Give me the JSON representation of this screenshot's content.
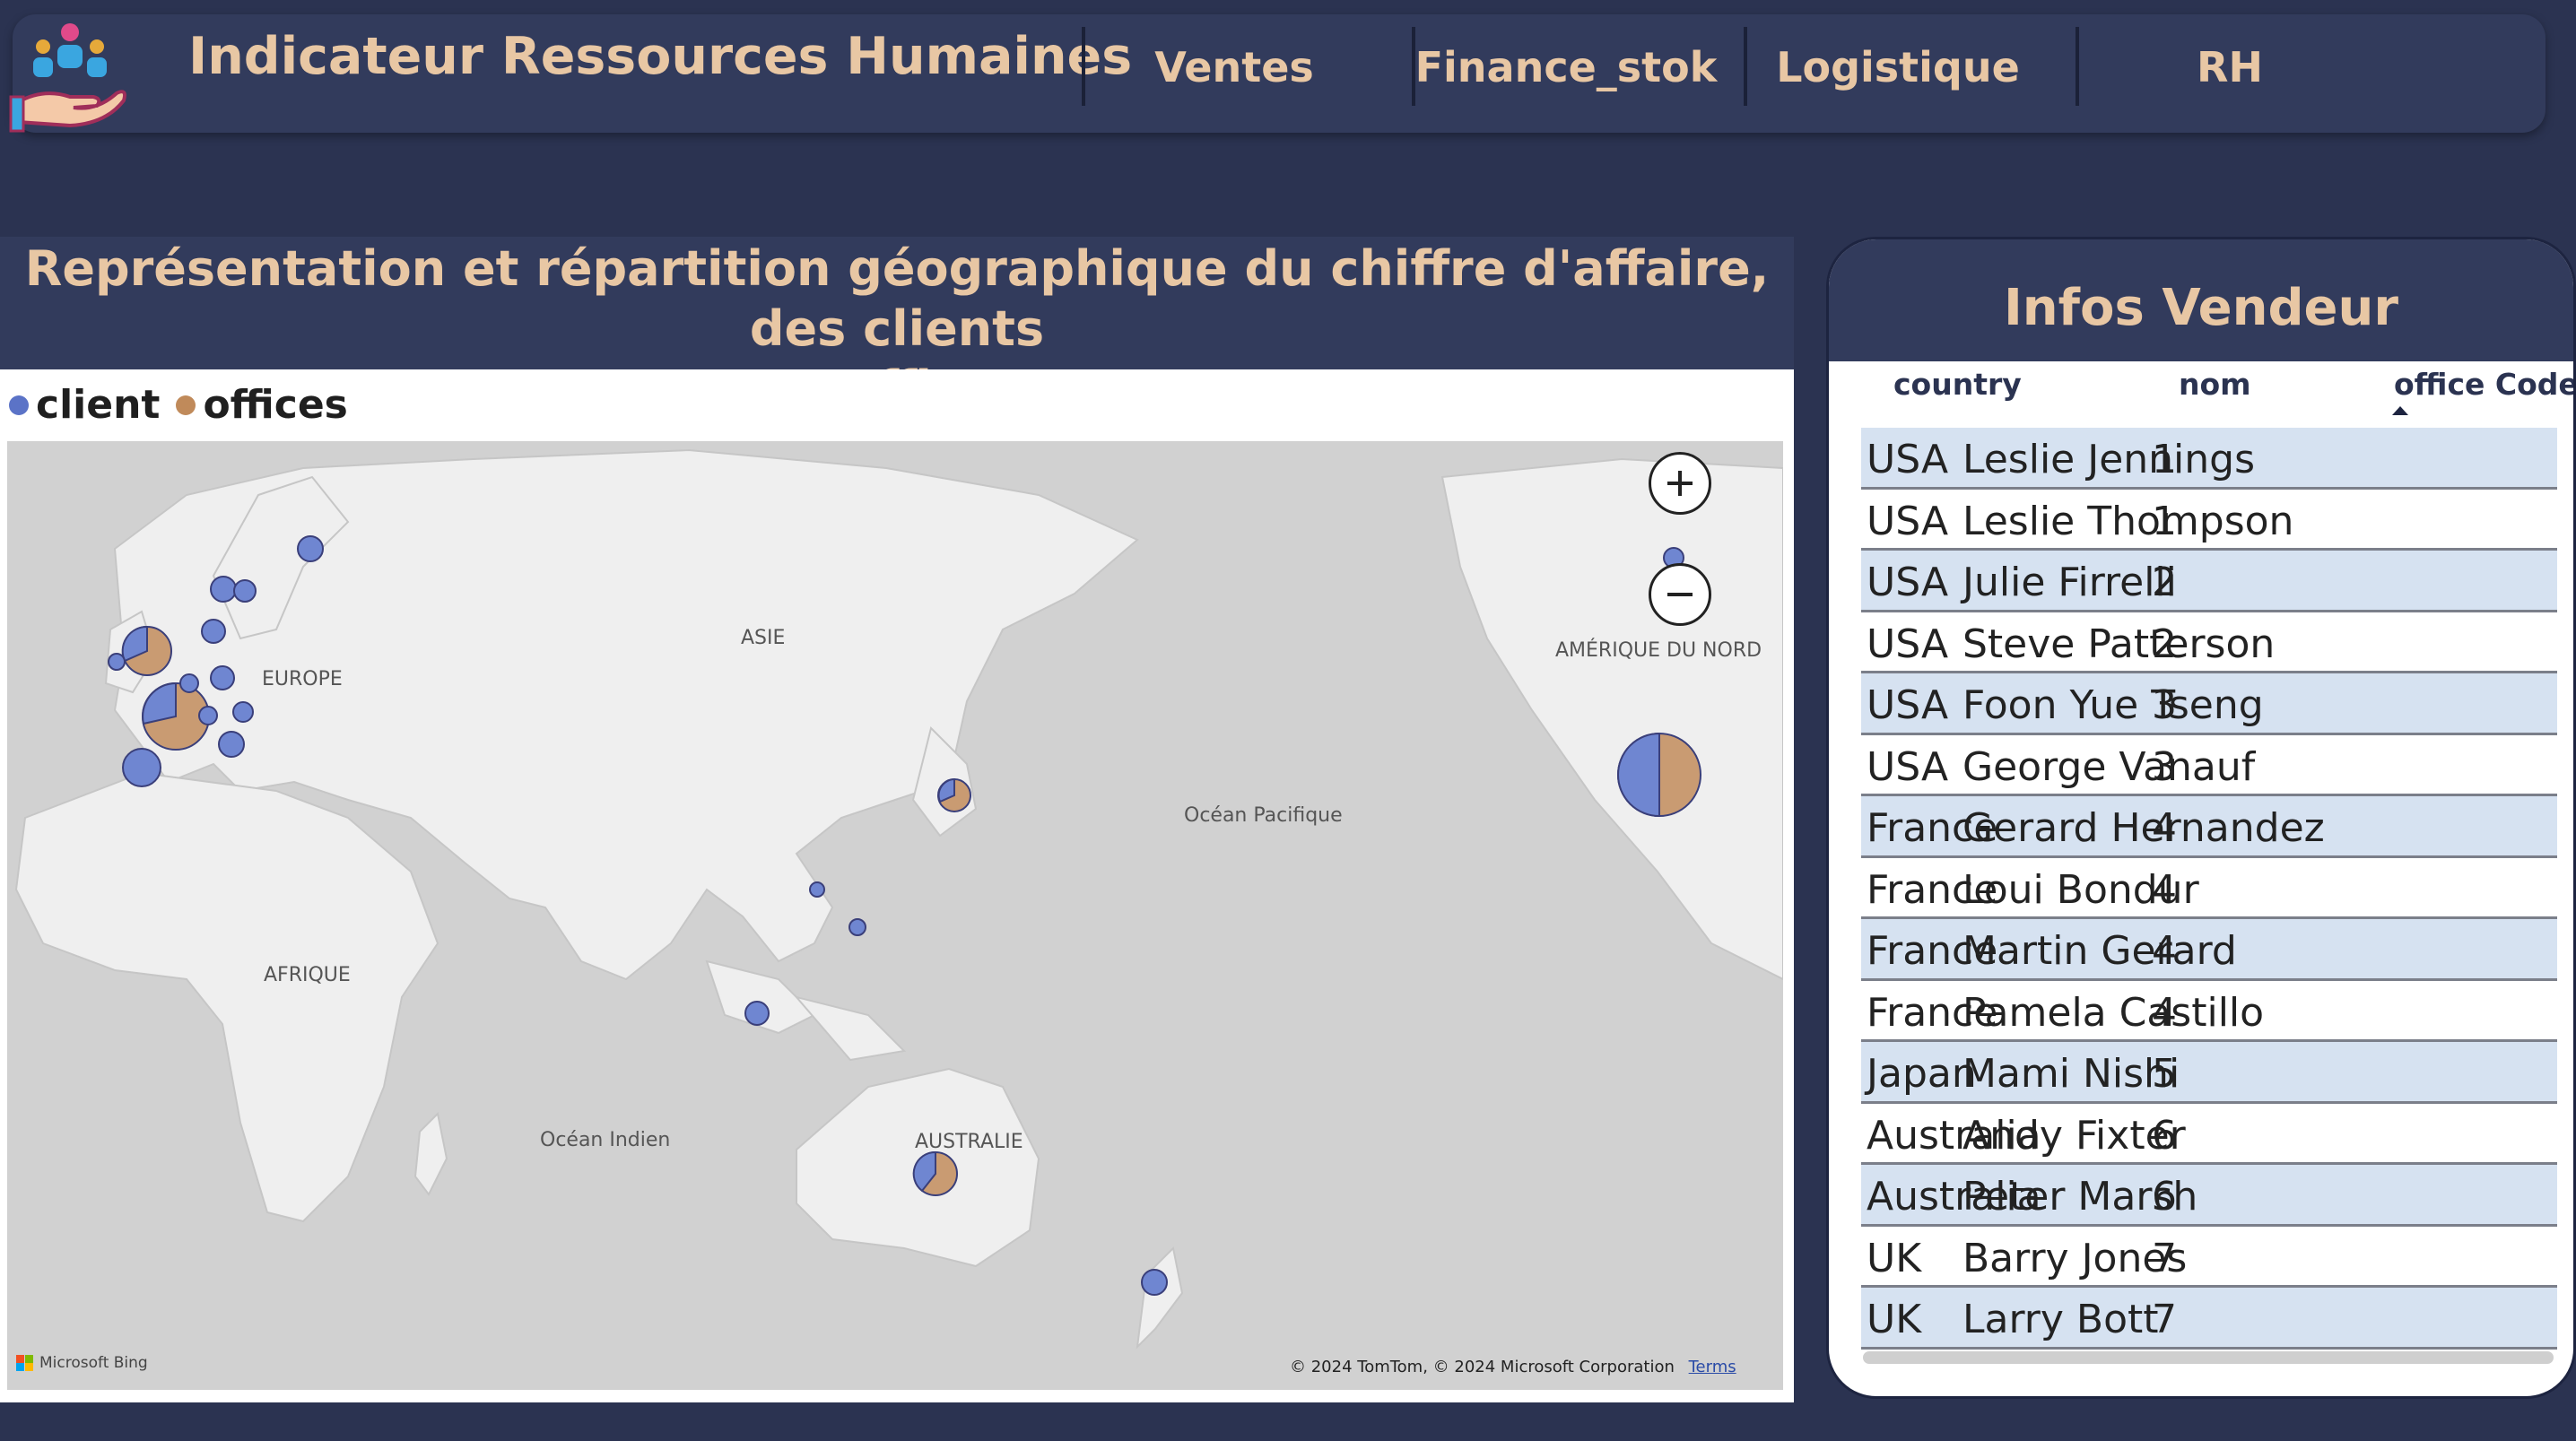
{
  "header": {
    "title": "Indicateur Ressources Humaines",
    "nav": [
      {
        "label": "Ventes"
      },
      {
        "label": "Finance_stok"
      },
      {
        "label": "Logistique"
      },
      {
        "label": "RH"
      }
    ]
  },
  "map_section": {
    "title_line1": "Représentation et répartition géographique du chiffre d'affaire, des clients",
    "title_line2": "et offices",
    "legend": [
      {
        "label": "client",
        "color": "#5b73c7"
      },
      {
        "label": "offices",
        "color": "#c08a5a"
      }
    ],
    "region_labels": {
      "europe": "EUROPE",
      "asie": "ASIE",
      "amerique": "AMÉRIQUE DU NORD",
      "pacifique": "Océan Pacifique",
      "afrique": "AFRIQUE",
      "indien": "Océan Indien",
      "australie": "AUSTRALIE"
    },
    "attribution": "Microsoft Bing",
    "copyright": "© 2024 TomTom, © 2024 Microsoft Corporation",
    "terms": "Terms",
    "colors": {
      "client": "#6f86d1",
      "offices": "#c99b72",
      "land": "#efefef",
      "water": "#d1d1d1"
    }
  },
  "vendor": {
    "title": "Infos Vendeur",
    "columns": [
      "country",
      "nom",
      "office Code"
    ],
    "rows": [
      {
        "country": "USA",
        "nom": "Leslie Jennings",
        "office_code": "1"
      },
      {
        "country": "USA",
        "nom": "Leslie Thompson",
        "office_code": "1"
      },
      {
        "country": "USA",
        "nom": "Julie Firrelli",
        "office_code": "2"
      },
      {
        "country": "USA",
        "nom": "Steve Patterson",
        "office_code": "2"
      },
      {
        "country": "USA",
        "nom": "Foon Yue Tseng",
        "office_code": "3"
      },
      {
        "country": "USA",
        "nom": "George Vanauf",
        "office_code": "3"
      },
      {
        "country": "France",
        "nom": "Gerard Hernandez",
        "office_code": "4"
      },
      {
        "country": "France",
        "nom": "Loui Bondur",
        "office_code": "4"
      },
      {
        "country": "France",
        "nom": "Martin Gerard",
        "office_code": "4"
      },
      {
        "country": "France",
        "nom": "Pamela Castillo",
        "office_code": "4"
      },
      {
        "country": "Japan",
        "nom": "Mami Nishi",
        "office_code": "5"
      },
      {
        "country": "Australia",
        "nom": "Andy Fixter",
        "office_code": "6"
      },
      {
        "country": "Australia",
        "nom": "Peter Marsh",
        "office_code": "6"
      },
      {
        "country": "UK",
        "nom": "Barry Jones",
        "office_code": "7"
      },
      {
        "country": "UK",
        "nom": "Larry Bott",
        "office_code": "7"
      }
    ]
  },
  "icons": {
    "logo": "hr-hand-people-icon",
    "zoom_in": "plus-icon",
    "zoom_out": "minus-icon",
    "sort": "sort-ascending-icon"
  }
}
